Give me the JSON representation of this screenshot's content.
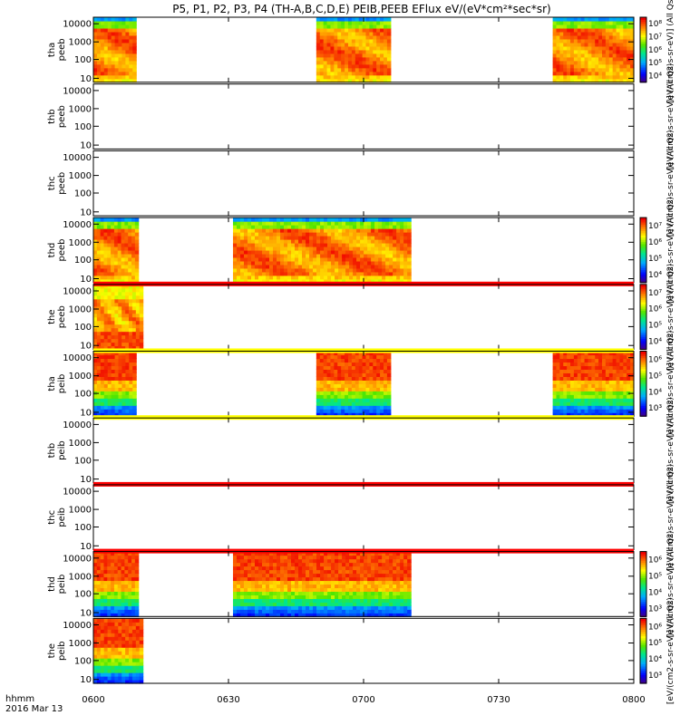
{
  "chart_data": {
    "type": "heatmap",
    "title": "P5, P1, P2, P3, P4 (TH-A,B,C,D,E) PEIB,PEEB EFlux eV/(eV*cm²*sec*sr)",
    "x_label_left": "hhmm",
    "date_label": "2016 Mar 13",
    "x_ticks": [
      "0600",
      "0630",
      "0700",
      "0730",
      "0800"
    ],
    "x_range_minutes": [
      0,
      120
    ],
    "y_scale": "log",
    "y_ticks": [
      "10",
      "100",
      "1000",
      "10000"
    ],
    "panels": [
      {
        "id": "tha_peeb",
        "ylabel": [
          "tha",
          "peeb"
        ],
        "has_data": true,
        "intervals": [
          [
            0,
            9.5
          ],
          [
            49.5,
            66
          ],
          [
            102,
            120
          ]
        ],
        "profile": "electron",
        "band": null,
        "colorbar": {
          "ticks": [
            "10⁴",
            "10⁵",
            "10⁶",
            "10⁷",
            "10⁸"
          ],
          "label": "[eV/(cm2-s-sr-eV)] (All Qs)"
        }
      },
      {
        "id": "thb_peeb",
        "ylabel": [
          "thb",
          "peeb"
        ],
        "has_data": false,
        "intervals": [],
        "profile": "none",
        "band": null,
        "colorbar": {
          "ticks": [],
          "label": "[eV/(cm2-s-sr-eV)] (All Qs)"
        }
      },
      {
        "id": "thc_peeb",
        "ylabel": [
          "thc",
          "peeb"
        ],
        "has_data": false,
        "intervals": [],
        "profile": "none",
        "band": null,
        "colorbar": {
          "ticks": [],
          "label": "[eV/(cm2-s-sr-eV)] (All Qs)"
        }
      },
      {
        "id": "thd_peeb",
        "ylabel": [
          "thd",
          "peeb"
        ],
        "has_data": true,
        "intervals": [
          [
            0,
            10
          ],
          [
            31,
            70.5
          ]
        ],
        "profile": "electron",
        "band": null,
        "colorbar": {
          "ticks": [
            "10⁴",
            "10⁵",
            "10⁶",
            "10⁷"
          ],
          "label": "[eV/(cm2-s-sr-eV)] (All Qs)"
        }
      },
      {
        "id": "the_peeb",
        "ylabel": [
          "the",
          "peeb"
        ],
        "has_data": true,
        "intervals": [
          [
            0,
            11
          ]
        ],
        "profile": "electron_weak",
        "band": "red",
        "colorbar": {
          "ticks": [
            "10⁴",
            "10⁵",
            "10⁶",
            "10⁷"
          ],
          "label": "[eV/(cm2-s-sr-eV)] (All Qs)"
        }
      },
      {
        "id": "tha_peib",
        "ylabel": [
          "tha",
          "peib"
        ],
        "has_data": true,
        "intervals": [
          [
            0,
            9.5
          ],
          [
            49.5,
            66
          ],
          [
            102,
            120
          ]
        ],
        "profile": "ion",
        "band": "yellow",
        "colorbar": {
          "ticks": [
            "10³",
            "10⁴",
            "10⁵",
            "10⁶"
          ],
          "label": "[eV/(cm2-s-sr-eV)] (All Qs)"
        }
      },
      {
        "id": "thb_peib",
        "ylabel": [
          "thb",
          "peib"
        ],
        "has_data": false,
        "intervals": [],
        "profile": "none",
        "band": "yellow",
        "colorbar": {
          "ticks": [],
          "label": "[eV/(cm2-s-sr-eV)] (All Qs)"
        }
      },
      {
        "id": "thc_peib",
        "ylabel": [
          "thc",
          "peib"
        ],
        "has_data": false,
        "intervals": [],
        "profile": "none",
        "band": "red",
        "colorbar": {
          "ticks": [],
          "label": "[eV/(cm2-s-sr-eV)] (All Qs)"
        }
      },
      {
        "id": "thd_peib",
        "ylabel": [
          "thd",
          "peib"
        ],
        "has_data": true,
        "intervals": [
          [
            0,
            10
          ],
          [
            31,
            70.5
          ]
        ],
        "profile": "ion",
        "band": "red",
        "colorbar": {
          "ticks": [
            "10³",
            "10⁴",
            "10⁵",
            "10⁶"
          ],
          "label": "[eV/(cm2-s-sr-eV)] (All Qs)"
        }
      },
      {
        "id": "the_peib",
        "ylabel": [
          "the",
          "peib"
        ],
        "has_data": true,
        "intervals": [
          [
            0,
            11
          ]
        ],
        "profile": "ion",
        "band": null,
        "colorbar": {
          "ticks": [
            "10³",
            "10⁴",
            "10⁵",
            "10⁶"
          ],
          "label": "[eV/(cm2-s-sr-eV)] (All Qs)"
        }
      }
    ]
  }
}
